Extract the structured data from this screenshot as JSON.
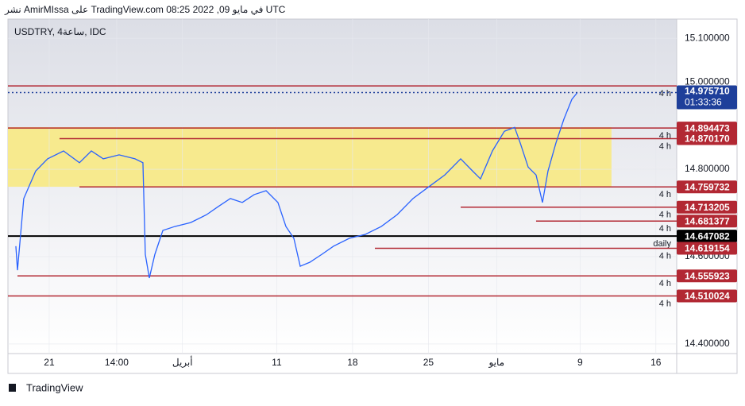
{
  "header": {
    "caption": "نشر AmirMIssa على TradingView.com في مايو 09, 2022 08:25 UTC"
  },
  "footer": {
    "brand": "TradingView"
  },
  "chart_data": {
    "type": "line",
    "title": "USDTRY, 4ساعة, IDC",
    "color": "#2962ff",
    "x": [
      17.92,
      18.07,
      18.65,
      19.75,
      20.85,
      22.32,
      23.79,
      24.89,
      25.99,
      27.45,
      28.92,
      29.65,
      29.87,
      30.24,
      30.75,
      31.49,
      32.59,
      34.06,
      35.52,
      36.62,
      37.72,
      38.82,
      39.92,
      41.02,
      42.11,
      42.85,
      43.58,
      44.17,
      45.05,
      46.15,
      47.25,
      48.71,
      50.18,
      51.65,
      53.11,
      54.58,
      56.04,
      57.51,
      58.98,
      60.08,
      60.81,
      61.91,
      63.01,
      63.96,
      64.48,
      65.21,
      65.94,
      66.53,
      67.04,
      67.77,
      68.51,
      69.24,
      69.75
    ],
    "values": [
      14.624,
      14.569,
      14.733,
      14.796,
      14.824,
      14.842,
      14.815,
      14.842,
      14.824,
      14.833,
      14.824,
      14.815,
      14.605,
      14.551,
      14.605,
      14.66,
      14.669,
      14.678,
      14.696,
      14.715,
      14.733,
      14.724,
      14.742,
      14.751,
      14.724,
      14.669,
      14.642,
      14.578,
      14.587,
      14.605,
      14.624,
      14.642,
      14.651,
      14.669,
      14.696,
      14.733,
      14.76,
      14.787,
      14.824,
      14.796,
      14.778,
      14.842,
      14.887,
      14.896,
      14.86,
      14.805,
      14.787,
      14.724,
      14.796,
      14.86,
      14.915,
      14.96,
      14.9757
    ],
    "xlim": [
      17.19,
      78.92
    ],
    "ylim": [
      14.378,
      15.144
    ],
    "xticks": [
      {
        "value": 21,
        "label": "21"
      },
      {
        "value": 27.23,
        "label": "14:00"
      },
      {
        "value": 33.3,
        "label": "أبريل"
      },
      {
        "value": 42,
        "label": "11"
      },
      {
        "value": 49,
        "label": "18"
      },
      {
        "value": 56,
        "label": "25"
      },
      {
        "value": 62.3,
        "label": "مايو"
      },
      {
        "value": 70,
        "label": "9"
      },
      {
        "value": 77,
        "label": "16"
      }
    ],
    "yticks": [
      {
        "value": 15.1,
        "label": "15.100000"
      },
      {
        "value": 15.0,
        "label": "15.000000"
      },
      {
        "value": 14.8,
        "label": "14.800000"
      },
      {
        "value": 14.6,
        "label": "14.600000"
      },
      {
        "value": 14.4,
        "label": "14.400000"
      }
    ],
    "zone": {
      "top": 14.8964,
      "bottom": 14.76,
      "end": 72.9,
      "color": "#f7ea8e"
    },
    "current": {
      "value": 14.97571,
      "label": "14.975710",
      "countdown": "01:33:36",
      "color": "#1e3f9a"
    },
    "levels": [
      {
        "value": 14.991,
        "timeframe": "4 h",
        "start": 17.19,
        "color": "#b22833"
      },
      {
        "value": 14.894473,
        "label": "14.894473",
        "timeframe": "4 h",
        "start": 17.19,
        "color": "#b22833"
      },
      {
        "value": 14.87017,
        "label": "14.870170",
        "timeframe": "4 h",
        "start": 21.95,
        "color": "#b22833"
      },
      {
        "value": 14.759732,
        "label": "14.759732",
        "timeframe": "4 h",
        "start": 23.79,
        "color": "#b22833"
      },
      {
        "value": 14.713205,
        "label": "14.713205",
        "timeframe": "4 h",
        "start": 58.98,
        "color": "#b22833"
      },
      {
        "value": 14.681377,
        "label": "14.681377",
        "timeframe": "4 h",
        "start": 65.94,
        "color": "#b22833"
      },
      {
        "value": 14.647082,
        "label": "14.647082",
        "timeframe": "daily",
        "start": 17.19,
        "color": "#000000"
      },
      {
        "value": 14.619154,
        "label": "14.619154",
        "timeframe": "4 h",
        "start": 51.06,
        "color": "#b22833"
      },
      {
        "value": 14.555923,
        "label": "14.555923",
        "timeframe": "4 h",
        "start": 18.07,
        "color": "#b22833"
      },
      {
        "value": 14.510024,
        "label": "14.510024",
        "timeframe": "4 h",
        "start": 17.19,
        "color": "#b22833"
      }
    ]
  }
}
